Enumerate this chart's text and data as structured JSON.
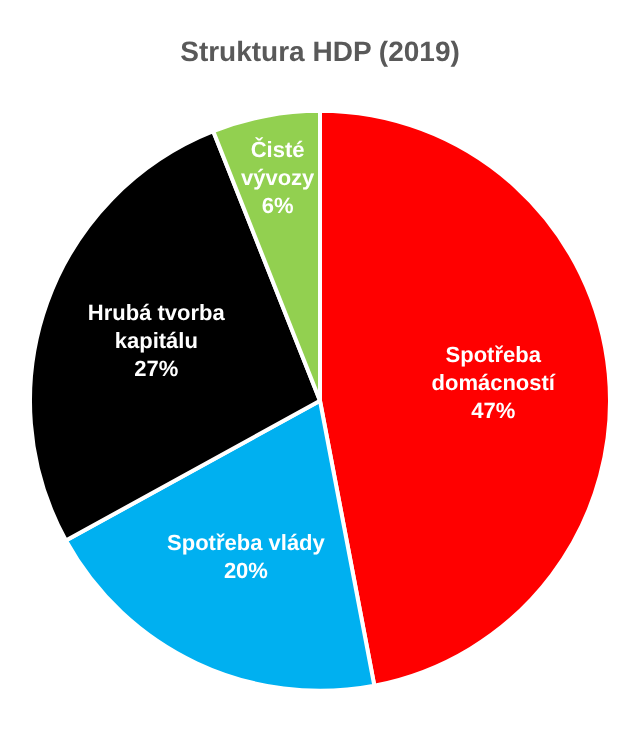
{
  "chart_data": {
    "type": "pie",
    "title": "Struktura HDP (2019)",
    "categories": [
      "Spotřeba domácností",
      "Spotřeba vlády",
      "Hrubá tvorba kapitálu",
      "Čisté vývozy"
    ],
    "values": [
      47,
      20,
      27,
      6
    ],
    "colors": [
      "#ff0000",
      "#00b0f0",
      "#000000",
      "#92d050"
    ],
    "value_labels": [
      "47%",
      "20%",
      "27%",
      "6%"
    ],
    "legend": false
  }
}
